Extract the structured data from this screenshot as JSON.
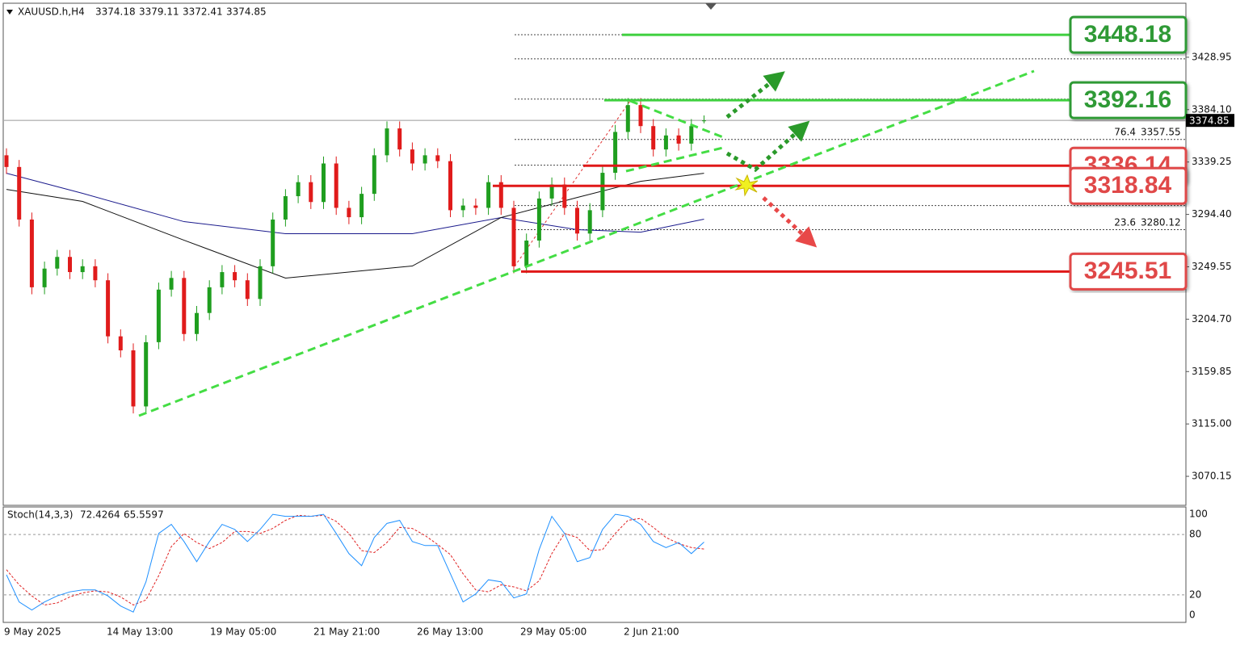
{
  "chart_data": {
    "type": "candlestick",
    "symbol": "XAUUSD.h,H4",
    "open": [
      3345,
      3335,
      3290,
      3232,
      3248,
      3258,
      3245,
      3250,
      3238,
      3190,
      3178,
      3130,
      3185,
      3230,
      3240,
      3192,
      3210,
      3232,
      3245,
      3238,
      3222,
      3250,
      3290,
      3310,
      3322,
      3305,
      3338,
      3300,
      3292,
      3312,
      3345,
      3368,
      3350,
      3338,
      3345,
      3340,
      3298,
      3302,
      3300,
      3322,
      3300,
      3250,
      3272,
      3308,
      3320,
      3300,
      3278,
      3298,
      3330,
      3365,
      3388,
      3370,
      3350,
      3362,
      3355,
      3374.18
    ],
    "high": [
      3351,
      3341,
      3296,
      3254,
      3264,
      3264,
      3256,
      3256,
      3244,
      3196,
      3184,
      3191,
      3236,
      3246,
      3246,
      3216,
      3238,
      3251,
      3251,
      3244,
      3256,
      3296,
      3316,
      3328,
      3328,
      3344,
      3344,
      3306,
      3318,
      3351,
      3374,
      3374,
      3356,
      3351,
      3351,
      3346,
      3308,
      3308,
      3328,
      3328,
      3306,
      3278,
      3314,
      3326,
      3326,
      3306,
      3304,
      3336,
      3371,
      3394,
      3394,
      3376,
      3368,
      3368,
      3376,
      3379.11
    ],
    "low": [
      3329,
      3284,
      3226,
      3226,
      3242,
      3239,
      3239,
      3232,
      3184,
      3172,
      3124,
      3124,
      3179,
      3224,
      3186,
      3186,
      3204,
      3226,
      3232,
      3216,
      3216,
      3244,
      3284,
      3304,
      3299,
      3299,
      3294,
      3286,
      3286,
      3306,
      3339,
      3344,
      3332,
      3332,
      3334,
      3292,
      3292,
      3294,
      3294,
      3294,
      3244,
      3244,
      3266,
      3302,
      3294,
      3272,
      3272,
      3292,
      3324,
      3359,
      3364,
      3344,
      3344,
      3349,
      3349,
      3372.41
    ],
    "close": [
      3335,
      3290,
      3232,
      3248,
      3258,
      3245,
      3250,
      3238,
      3190,
      3178,
      3130,
      3185,
      3230,
      3240,
      3192,
      3210,
      3232,
      3245,
      3238,
      3222,
      3250,
      3290,
      3310,
      3322,
      3305,
      3338,
      3300,
      3292,
      3312,
      3345,
      3368,
      3350,
      3338,
      3345,
      3340,
      3298,
      3302,
      3300,
      3322,
      3300,
      3250,
      3272,
      3308,
      3320,
      3300,
      3278,
      3298,
      3330,
      3365,
      3388,
      3370,
      3350,
      3362,
      3355,
      3370,
      3374.85
    ],
    "up_color": "#1f9e1f",
    "down_color": "#e01b1b",
    "moving_averages": [
      {
        "color": "#1a1a8c",
        "x": [
          0,
          6,
          14,
          22,
          32,
          39,
          45,
          50,
          55
        ],
        "values": [
          3329.6,
          3312.4,
          3288.2,
          3277.9,
          3277.9,
          3291.7,
          3281.3,
          3279.2,
          3290.3
        ]
      },
      {
        "color": "#111111",
        "x": [
          0,
          6,
          14,
          22,
          32,
          39,
          45,
          50,
          55
        ],
        "values": [
          3315.8,
          3305.5,
          3272.3,
          3239.9,
          3250.2,
          3291.7,
          3308.9,
          3322.7,
          3329.6
        ]
      }
    ],
    "ylim": [
      3046,
      3474.5
    ],
    "yticks": [
      3428.95,
      {
        "value": 3384.1,
        "label": "3384.10"
      },
      3339.25,
      {
        "value": 3294.4,
        "label": "3294.40"
      },
      3249.55,
      {
        "value": 3204.7,
        "label": "3204.70"
      },
      3159.85,
      {
        "value": 3115,
        "label": "3115.00"
      },
      3070.15
    ],
    "fib_levels": [
      3448.2,
      3427.6,
      3393.1,
      3358.6,
      3336.5,
      3319.3,
      3302,
      3281.3
    ],
    "fib_labels": [
      {
        "ratio": 76.4,
        "price": 3357.55
      },
      {
        "ratio": 23.6,
        "price": 3280.12
      }
    ],
    "levels": [
      {
        "price": 3448.18,
        "color": "#2f9a36",
        "line": "#3fd03f"
      },
      {
        "price": 3392.16,
        "color": "#2f9a36",
        "line": "#3fd03f"
      },
      {
        "price": 3336.14,
        "color": "#e04848",
        "line": "#e01818"
      },
      {
        "price": 3318.84,
        "color": "#e04848",
        "line": "#e01818"
      },
      {
        "price": 3245.51,
        "color": "#e04848",
        "line": "#e01818"
      }
    ],
    "x_labels": [
      "9 May 2025",
      "14 May 13:00",
      "19 May 05:00",
      "21 May 21:00",
      "26 May 13:00",
      "29 May 05:00",
      "2 Jun 21:00"
    ],
    "stochastic": {
      "name": "Stoch(14,3,3)",
      "ylim": [
        -7.3,
        107.3
      ],
      "yticks": [
        100,
        80,
        20,
        0
      ],
      "k": {
        "color": "#1e90ff",
        "values": [
          40,
          13,
          5,
          13,
          19,
          23,
          25,
          25,
          19,
          9,
          3,
          33,
          81,
          90,
          73,
          53,
          73,
          90,
          85,
          73,
          85,
          100,
          98,
          98,
          98,
          100,
          81,
          61,
          49,
          77,
          91,
          94,
          73,
          69,
          69,
          41,
          13,
          21,
          35,
          33,
          17,
          21,
          65,
          98,
          81,
          53,
          57,
          85,
          100,
          98,
          90,
          73,
          67,
          72,
          61,
          72.4264
        ]
      },
      "d": {
        "color": "#e02020",
        "values": [
          45,
          30,
          19,
          10,
          12,
          18,
          22,
          24,
          23,
          18,
          10,
          15,
          39,
          68,
          81,
          72,
          66,
          72,
          83,
          83,
          81,
          86,
          94,
          99,
          98,
          99,
          93,
          81,
          64,
          62,
          72,
          87,
          86,
          79,
          70,
          60,
          41,
          25,
          23,
          30,
          28,
          24,
          34,
          61,
          81,
          77,
          64,
          65,
          81,
          94,
          96,
          87,
          77,
          71,
          67,
          65.5597
        ]
      }
    }
  }
}
